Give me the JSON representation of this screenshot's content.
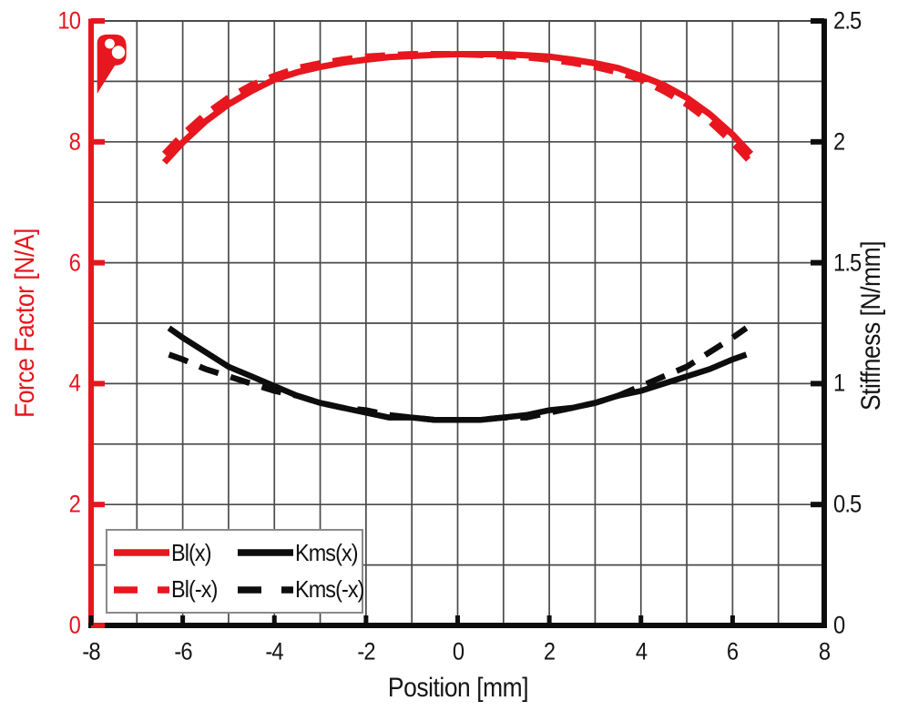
{
  "colors": {
    "red": "#e8161e",
    "black": "#0d0d0d",
    "grid": "#4a4a4a",
    "legend_border": "#8a8a8a",
    "background": "#ffffff"
  },
  "logo": {
    "name": "brand-logo"
  },
  "axes": {
    "x": {
      "label": "Position [mm]",
      "min": -8,
      "max": 8,
      "tick_values": [
        -8,
        -6,
        -4,
        -2,
        0,
        2,
        4,
        6,
        8
      ],
      "tick_labels": [
        "-8",
        "-6",
        "-4",
        "-2",
        "0",
        "2",
        "4",
        "6",
        "8"
      ],
      "grid_step": 1
    },
    "y_left": {
      "label": "Force Factor [N/A]",
      "min": 0,
      "max": 10,
      "tick_values": [
        0,
        2,
        4,
        6,
        8,
        10
      ],
      "tick_labels": [
        "0",
        "2",
        "4",
        "6",
        "8",
        "10"
      ],
      "grid_step": 1
    },
    "y_right": {
      "label": "Stiffness [N/mm]",
      "min": 0,
      "max": 2.5,
      "tick_values": [
        0,
        0.5,
        1,
        1.5,
        2,
        2.5
      ],
      "tick_labels": [
        "0",
        "0.5",
        "1",
        "1.5",
        "2",
        "2.5"
      ]
    }
  },
  "legend": {
    "items": [
      {
        "label": "Bl(x)",
        "style": "solid",
        "color": "#e8161e"
      },
      {
        "label": "Kms(x)",
        "style": "solid",
        "color": "#0d0d0d"
      },
      {
        "label": "Bl(-x)",
        "style": "dashed",
        "color": "#e8161e"
      },
      {
        "label": "Kms(-x)",
        "style": "dashed",
        "color": "#0d0d0d"
      }
    ]
  },
  "chart_data": {
    "type": "line",
    "title": "",
    "xlabel": "Position [mm]",
    "ylabel_left": "Force Factor [N/A]",
    "ylabel_right": "Stiffness [N/mm]",
    "x_range": [
      -8,
      8
    ],
    "y_left_range": [
      0,
      10
    ],
    "y_right_range": [
      0,
      2.5
    ],
    "grid": "on",
    "legend_position": "bottom-left",
    "series": [
      {
        "name": "Bl(x)",
        "axis": "left",
        "style": "solid",
        "color": "#e8161e",
        "unit": "N/A",
        "points": [
          [
            -6.4,
            7.66
          ],
          [
            -6,
            7.99
          ],
          [
            -5.5,
            8.34
          ],
          [
            -5,
            8.62
          ],
          [
            -4.5,
            8.84
          ],
          [
            -4,
            9.03
          ],
          [
            -3.5,
            9.15
          ],
          [
            -3,
            9.24
          ],
          [
            -2.5,
            9.31
          ],
          [
            -2,
            9.36
          ],
          [
            -1.5,
            9.4
          ],
          [
            -1,
            9.42
          ],
          [
            -0.5,
            9.44
          ],
          [
            0,
            9.45
          ],
          [
            0.5,
            9.45
          ],
          [
            1,
            9.45
          ],
          [
            1.5,
            9.43
          ],
          [
            2,
            9.41
          ],
          [
            2.5,
            9.36
          ],
          [
            3,
            9.3
          ],
          [
            3.5,
            9.22
          ],
          [
            4,
            9.09
          ],
          [
            4.5,
            8.94
          ],
          [
            5,
            8.73
          ],
          [
            5.5,
            8.46
          ],
          [
            6,
            8.12
          ],
          [
            6.4,
            7.8
          ]
        ]
      },
      {
        "name": "Bl(-x)",
        "axis": "left",
        "style": "dashed",
        "color": "#e8161e",
        "unit": "N/A",
        "points": [
          [
            -6.4,
            7.8
          ],
          [
            -6,
            8.12
          ],
          [
            -5.5,
            8.46
          ],
          [
            -5,
            8.73
          ],
          [
            -4.5,
            8.94
          ],
          [
            -4,
            9.09
          ],
          [
            -3.5,
            9.22
          ],
          [
            -3,
            9.3
          ],
          [
            -2.5,
            9.36
          ],
          [
            -2,
            9.41
          ],
          [
            -1.5,
            9.43
          ],
          [
            -1,
            9.45
          ],
          [
            -0.5,
            9.45
          ],
          [
            0,
            9.45
          ],
          [
            0.5,
            9.44
          ],
          [
            1,
            9.42
          ],
          [
            1.5,
            9.4
          ],
          [
            2,
            9.36
          ],
          [
            2.5,
            9.31
          ],
          [
            3,
            9.24
          ],
          [
            3.5,
            9.15
          ],
          [
            4,
            9.03
          ],
          [
            4.5,
            8.84
          ],
          [
            5,
            8.62
          ],
          [
            5.5,
            8.34
          ],
          [
            6,
            7.99
          ],
          [
            6.4,
            7.66
          ]
        ]
      },
      {
        "name": "Kms(x)",
        "axis": "right",
        "style": "solid",
        "color": "#0d0d0d",
        "unit": "N/mm",
        "points": [
          [
            -6.3,
            1.23
          ],
          [
            -6,
            1.19
          ],
          [
            -5.5,
            1.13
          ],
          [
            -5,
            1.07
          ],
          [
            -4.5,
            1.03
          ],
          [
            -4,
            0.99
          ],
          [
            -3.5,
            0.95
          ],
          [
            -3,
            0.92
          ],
          [
            -2.5,
            0.9
          ],
          [
            -2,
            0.88
          ],
          [
            -1.5,
            0.86
          ],
          [
            -1,
            0.86
          ],
          [
            -0.5,
            0.85
          ],
          [
            0,
            0.85
          ],
          [
            0.5,
            0.85
          ],
          [
            1,
            0.86
          ],
          [
            1.5,
            0.87
          ],
          [
            2,
            0.89
          ],
          [
            2.5,
            0.9
          ],
          [
            3,
            0.92
          ],
          [
            3.5,
            0.95
          ],
          [
            4,
            0.97
          ],
          [
            4.5,
            1.0
          ],
          [
            5,
            1.03
          ],
          [
            5.5,
            1.06
          ],
          [
            6,
            1.1
          ],
          [
            6.3,
            1.12
          ]
        ]
      },
      {
        "name": "Kms(-x)",
        "axis": "right",
        "style": "dashed",
        "color": "#0d0d0d",
        "unit": "N/mm",
        "points": [
          [
            -6.3,
            1.12
          ],
          [
            -6,
            1.1
          ],
          [
            -5.5,
            1.06
          ],
          [
            -5,
            1.03
          ],
          [
            -4.5,
            1.0
          ],
          [
            -4,
            0.97
          ],
          [
            -3.5,
            0.95
          ],
          [
            -3,
            0.92
          ],
          [
            -2.5,
            0.9
          ],
          [
            -2,
            0.89
          ],
          [
            -1.5,
            0.87
          ],
          [
            -1,
            0.86
          ],
          [
            -0.5,
            0.85
          ],
          [
            0,
            0.85
          ],
          [
            0.5,
            0.85
          ],
          [
            1,
            0.86
          ],
          [
            1.5,
            0.86
          ],
          [
            2,
            0.88
          ],
          [
            2.5,
            0.9
          ],
          [
            3,
            0.92
          ],
          [
            3.5,
            0.95
          ],
          [
            4,
            0.99
          ],
          [
            4.5,
            1.03
          ],
          [
            5,
            1.07
          ],
          [
            5.5,
            1.13
          ],
          [
            6,
            1.19
          ],
          [
            6.3,
            1.23
          ]
        ]
      }
    ]
  }
}
